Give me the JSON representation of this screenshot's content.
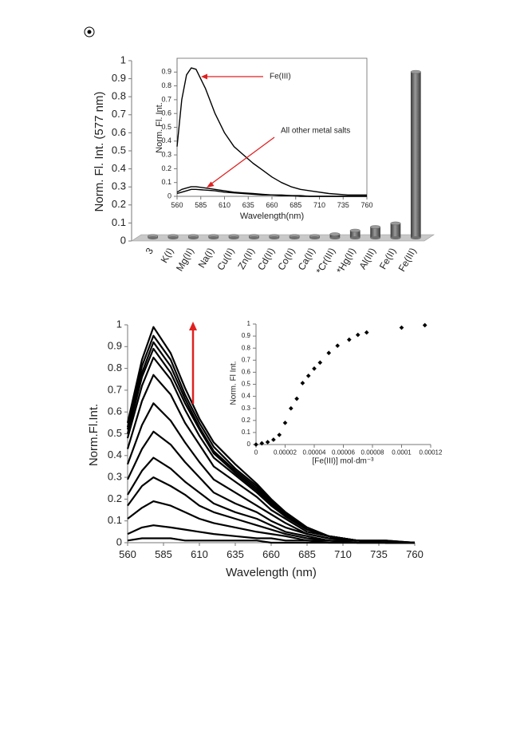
{
  "chart_data": [
    {
      "type": "bar",
      "ylabel": "Norm. Fl. Int. (577 nm)",
      "categories": [
        "3",
        "K(I)",
        "Mg(II)",
        "Na(I)",
        "Cu(II)",
        "Zn(II)",
        "Cd(II)",
        "Co(II)",
        "Ca(II)",
        "*Cr(III)",
        "*Hg(II)",
        "Al(III)",
        "Fe(II)",
        "Fe(III)"
      ],
      "values": [
        0.01,
        0.01,
        0.01,
        0.01,
        0.01,
        0.01,
        0.01,
        0.01,
        0.01,
        0.02,
        0.04,
        0.06,
        0.08,
        0.92
      ],
      "color": "#707070",
      "ylim": [
        0,
        1
      ],
      "yticks": [
        0,
        0.1,
        0.2,
        0.3,
        0.4,
        0.5,
        0.6,
        0.7,
        0.8,
        0.9,
        1
      ]
    },
    {
      "type": "line",
      "xlabel": "Wavelength(nm)",
      "ylabel": "Norm. Fl. Int.",
      "annotations": [
        "Fe(III)",
        "All other metal salts"
      ],
      "x": [
        560,
        565,
        570,
        575,
        580,
        590,
        600,
        610,
        620,
        630,
        640,
        650,
        660,
        670,
        680,
        690,
        700,
        720,
        740,
        760
      ],
      "series": [
        {
          "color": "#000000",
          "values": [
            0.36,
            0.7,
            0.88,
            0.93,
            0.92,
            0.78,
            0.6,
            0.46,
            0.36,
            0.3,
            0.24,
            0.19,
            0.14,
            0.1,
            0.07,
            0.05,
            0.04,
            0.02,
            0.01,
            0.01
          ]
        },
        {
          "color": "#000000",
          "values": [
            0.03,
            0.05,
            0.06,
            0.07,
            0.07,
            0.06,
            0.05,
            0.04,
            0.03,
            0.025,
            0.02,
            0.015,
            0.01,
            0.01,
            0.005,
            0.005,
            0,
            0,
            0,
            0
          ]
        },
        {
          "color": "#000000",
          "values": [
            0.02,
            0.03,
            0.04,
            0.05,
            0.05,
            0.045,
            0.04,
            0.03,
            0.025,
            0.02,
            0.015,
            0.01,
            0.01,
            0.005,
            0.005,
            0,
            0,
            0,
            0,
            0
          ]
        }
      ],
      "xlim": [
        560,
        760
      ],
      "xticks": [
        560,
        585,
        610,
        635,
        660,
        685,
        710,
        735,
        760
      ],
      "ylim": [
        0,
        1
      ],
      "yticks": [
        0,
        0.1,
        0.2,
        0.3,
        0.4,
        0.5,
        0.6,
        0.7,
        0.8,
        0.9
      ]
    },
    {
      "type": "line",
      "xlabel": "Wavelength (nm)",
      "ylabel": "Norm.Fl.Int.",
      "x": [
        560,
        570,
        578,
        590,
        600,
        610,
        620,
        635,
        650,
        660,
        670,
        685,
        700,
        720,
        740,
        760
      ],
      "series": [
        {
          "color": "#000000",
          "values": [
            0.55,
            0.84,
            0.99,
            0.87,
            0.71,
            0.57,
            0.46,
            0.36,
            0.27,
            0.2,
            0.14,
            0.07,
            0.03,
            0.01,
            0.01,
            0
          ]
        },
        {
          "color": "#000000",
          "values": [
            0.53,
            0.81,
            0.95,
            0.84,
            0.68,
            0.55,
            0.44,
            0.34,
            0.26,
            0.19,
            0.13,
            0.07,
            0.03,
            0.01,
            0.01,
            0
          ]
        },
        {
          "color": "#000000",
          "values": [
            0.52,
            0.78,
            0.92,
            0.81,
            0.66,
            0.53,
            0.42,
            0.33,
            0.25,
            0.18,
            0.13,
            0.06,
            0.03,
            0.01,
            0,
            0
          ]
        },
        {
          "color": "#000000",
          "values": [
            0.5,
            0.76,
            0.89,
            0.78,
            0.64,
            0.52,
            0.41,
            0.32,
            0.24,
            0.18,
            0.12,
            0.06,
            0.03,
            0.01,
            0,
            0
          ]
        },
        {
          "color": "#000000",
          "values": [
            0.48,
            0.72,
            0.85,
            0.75,
            0.61,
            0.49,
            0.39,
            0.31,
            0.23,
            0.17,
            0.12,
            0.06,
            0.03,
            0.01,
            0,
            0
          ]
        },
        {
          "color": "#000000",
          "values": [
            0.43,
            0.65,
            0.77,
            0.68,
            0.55,
            0.45,
            0.35,
            0.28,
            0.21,
            0.15,
            0.11,
            0.05,
            0.03,
            0.01,
            0,
            0
          ]
        },
        {
          "color": "#000000",
          "values": [
            0.36,
            0.54,
            0.64,
            0.56,
            0.46,
            0.37,
            0.29,
            0.23,
            0.17,
            0.13,
            0.09,
            0.04,
            0.02,
            0.01,
            0,
            0
          ]
        },
        {
          "color": "#000000",
          "values": [
            0.29,
            0.43,
            0.51,
            0.45,
            0.37,
            0.3,
            0.23,
            0.18,
            0.14,
            0.1,
            0.07,
            0.04,
            0.02,
            0.01,
            0,
            0
          ]
        },
        {
          "color": "#000000",
          "values": [
            0.22,
            0.33,
            0.39,
            0.34,
            0.28,
            0.23,
            0.18,
            0.14,
            0.11,
            0.08,
            0.05,
            0.03,
            0.01,
            0.01,
            0,
            0
          ]
        },
        {
          "color": "#000000",
          "values": [
            0.17,
            0.26,
            0.3,
            0.26,
            0.22,
            0.17,
            0.14,
            0.11,
            0.08,
            0.06,
            0.04,
            0.02,
            0.01,
            0,
            0,
            0
          ]
        },
        {
          "color": "#000000",
          "values": [
            0.11,
            0.16,
            0.19,
            0.17,
            0.14,
            0.11,
            0.09,
            0.07,
            0.05,
            0.04,
            0.03,
            0.01,
            0.01,
            0,
            0,
            0
          ]
        },
        {
          "color": "#000000",
          "values": [
            0.04,
            0.07,
            0.08,
            0.07,
            0.06,
            0.05,
            0.04,
            0.03,
            0.02,
            0.02,
            0.01,
            0.01,
            0,
            0,
            0,
            0
          ]
        },
        {
          "color": "#000000",
          "values": [
            0.01,
            0.02,
            0.02,
            0.02,
            0.01,
            0.01,
            0.01,
            0.01,
            0.01,
            0,
            0,
            0,
            0,
            0,
            0,
            0
          ]
        }
      ],
      "xlim": [
        560,
        760
      ],
      "xticks": [
        560,
        585,
        610,
        635,
        660,
        685,
        710,
        735,
        760
      ],
      "ylim": [
        0,
        1
      ],
      "yticks": [
        0,
        0.1,
        0.2,
        0.3,
        0.4,
        0.5,
        0.6,
        0.7,
        0.8,
        0.9,
        1
      ]
    },
    {
      "type": "scatter",
      "xlabel": "[Fe(III)] mol·dm⁻³",
      "ylabel": "Norm. Fl Int.",
      "color": "#000000",
      "x": [
        0,
        4e-06,
        8e-06,
        1.2e-05,
        1.6e-05,
        2e-05,
        2.4e-05,
        2.8e-05,
        3.2e-05,
        3.6e-05,
        4e-05,
        4.4e-05,
        5e-05,
        5.6e-05,
        6.4e-05,
        7e-05,
        7.6e-05,
        0.0001,
        0.000116
      ],
      "values": [
        0,
        0.01,
        0.02,
        0.04,
        0.08,
        0.18,
        0.3,
        0.38,
        0.51,
        0.57,
        0.63,
        0.68,
        0.76,
        0.82,
        0.87,
        0.91,
        0.93,
        0.97,
        0.99
      ],
      "xlim": [
        0,
        0.00012
      ],
      "xticks": [
        0,
        2e-05,
        4e-05,
        6e-05,
        8e-05,
        0.0001,
        0.00012
      ],
      "ylim": [
        0,
        1
      ],
      "yticks": [
        0,
        0.1,
        0.2,
        0.3,
        0.4,
        0.5,
        0.6,
        0.7,
        0.8,
        0.9,
        1
      ]
    }
  ]
}
